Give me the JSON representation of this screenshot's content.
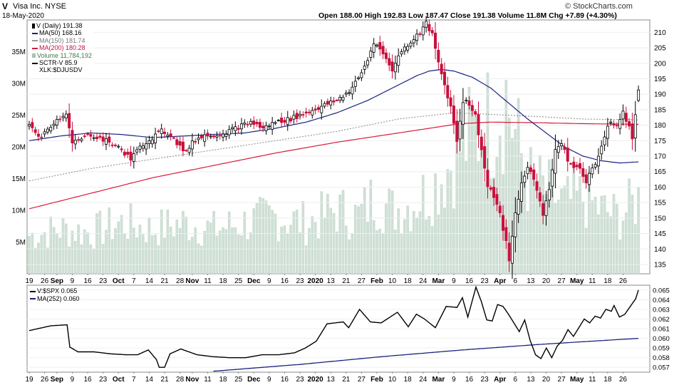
{
  "header": {
    "symbol": "V",
    "name": "Visa Inc. NYSE",
    "date": "18-May-2020",
    "brand": "© StockCharts.com",
    "ohlc": "Open 188.00  High 192.83  Low 187.47  Close 191.38  Volume 11.8M  Chg +7.89 (+4.30%)"
  },
  "legend": {
    "price": "V (Daily) 191.38",
    "ma50": "MA(50) 168.16",
    "ma150": "MA(150) 181.74",
    "ma200": "MA(200) 180.28",
    "volume": "Volume 11,784,192",
    "sctr": "SCTR-V 85.9",
    "xlk": "XLK:$DJUSDV"
  },
  "legend2": {
    "ratio": "V:$SPX 0.065",
    "ma": "MA(252) 0.060"
  },
  "colors": {
    "up": "#000000",
    "down": "#c8103c",
    "ma50": "#1a237e",
    "ma150": "#888888",
    "ma200": "#d81b3c",
    "volume": "#cfe0d6"
  },
  "chart_data": [
    {
      "type": "candlestick",
      "title": "V (Daily)",
      "price_axis": {
        "ylim": [
          132,
          214
        ],
        "ticks": [
          135,
          140,
          145,
          150,
          155,
          160,
          165,
          170,
          175,
          180,
          185,
          190,
          195,
          200,
          205,
          210
        ]
      },
      "volume_axis": {
        "ylim": [
          0,
          40000000
        ],
        "ticks": [
          "5M",
          "10M",
          "15M",
          "20M",
          "25M",
          "30M",
          "35M"
        ]
      },
      "x_tick_labels": [
        "19",
        "26",
        "Sep",
        "9",
        "16",
        "23",
        "Oct",
        "7",
        "14",
        "21",
        "28",
        "Nov",
        "11",
        "18",
        "25",
        "Dec",
        "9",
        "16",
        "23",
        "2020",
        "13",
        "21",
        "27",
        "Feb",
        "10",
        "18",
        "24",
        "Mar",
        "9",
        "16",
        "23",
        "Apr",
        "6",
        "13",
        "20",
        "27",
        "May",
        "11",
        "18",
        "26"
      ],
      "x_tick_bold": [
        "Sep",
        "Oct",
        "Nov",
        "Dec",
        "2020",
        "Feb",
        "Mar",
        "Apr",
        "May"
      ],
      "x_tick_day": [
        0,
        5,
        9,
        14,
        19,
        24,
        29,
        34,
        39,
        44,
        49,
        53,
        58,
        63,
        68,
        73,
        78,
        83,
        88,
        93,
        98,
        103,
        108,
        113,
        118,
        123,
        128,
        133,
        138,
        143,
        148,
        153,
        158,
        163,
        168,
        173,
        178,
        183,
        188,
        193
      ],
      "close_anchors": [
        [
          0,
          179.5
        ],
        [
          4,
          176
        ],
        [
          8,
          181
        ],
        [
          12,
          184
        ],
        [
          14,
          174
        ],
        [
          20,
          177
        ],
        [
          27,
          174
        ],
        [
          30,
          172
        ],
        [
          33,
          169
        ],
        [
          37,
          174
        ],
        [
          40,
          176
        ],
        [
          43,
          178
        ],
        [
          46,
          177
        ],
        [
          49,
          173
        ],
        [
          51,
          171
        ],
        [
          53,
          175
        ],
        [
          58,
          177
        ],
        [
          62,
          177
        ],
        [
          67,
          179
        ],
        [
          72,
          181
        ],
        [
          76,
          179
        ],
        [
          80,
          181
        ],
        [
          85,
          182
        ],
        [
          90,
          184
        ],
        [
          95,
          186
        ],
        [
          100,
          188
        ],
        [
          104,
          191
        ],
        [
          107,
          195
        ],
        [
          110,
          201
        ],
        [
          112,
          207
        ],
        [
          115,
          203
        ],
        [
          118,
          198
        ],
        [
          121,
          204
        ],
        [
          124,
          207
        ],
        [
          127,
          210
        ],
        [
          129,
          213
        ],
        [
          131,
          209
        ],
        [
          133,
          200
        ],
        [
          135,
          193
        ],
        [
          137,
          186
        ],
        [
          139,
          175
        ],
        [
          141,
          188
        ],
        [
          143,
          187
        ],
        [
          145,
          183
        ],
        [
          147,
          172
        ],
        [
          149,
          160
        ],
        [
          151,
          157
        ],
        [
          153,
          151
        ],
        [
          155,
          142
        ],
        [
          156,
          136
        ],
        [
          157,
          144
        ],
        [
          158,
          152
        ],
        [
          160,
          161
        ],
        [
          162,
          167
        ],
        [
          164,
          162
        ],
        [
          166,
          156
        ],
        [
          167,
          151
        ],
        [
          169,
          160
        ],
        [
          171,
          172
        ],
        [
          173,
          174
        ],
        [
          175,
          169
        ],
        [
          177,
          166
        ],
        [
          179,
          166
        ],
        [
          181,
          162
        ],
        [
          183,
          166
        ],
        [
          185,
          170
        ],
        [
          187,
          177
        ],
        [
          189,
          181
        ],
        [
          191,
          180
        ],
        [
          193,
          184
        ],
        [
          195,
          180
        ],
        [
          196,
          176
        ],
        [
          197,
          184
        ],
        [
          198,
          191.38
        ]
      ],
      "ma50_anchors": [
        [
          0,
          175
        ],
        [
          10,
          176.5
        ],
        [
          20,
          177.5
        ],
        [
          30,
          177
        ],
        [
          40,
          176
        ],
        [
          50,
          176.5
        ],
        [
          60,
          177
        ],
        [
          70,
          177.5
        ],
        [
          80,
          179
        ],
        [
          90,
          181
        ],
        [
          100,
          184
        ],
        [
          110,
          188
        ],
        [
          120,
          193
        ],
        [
          126,
          196
        ],
        [
          130,
          197.5
        ],
        [
          134,
          198
        ],
        [
          138,
          197.5
        ],
        [
          144,
          195.5
        ],
        [
          150,
          192
        ],
        [
          156,
          187
        ],
        [
          162,
          182
        ],
        [
          168,
          177.5
        ],
        [
          174,
          173
        ],
        [
          180,
          170
        ],
        [
          186,
          168.5
        ],
        [
          192,
          167.8
        ],
        [
          198,
          168.16
        ]
      ],
      "ma150_anchors": [
        [
          0,
          162
        ],
        [
          20,
          166
        ],
        [
          40,
          169
        ],
        [
          60,
          172
        ],
        [
          80,
          175
        ],
        [
          100,
          178
        ],
        [
          120,
          182
        ],
        [
          138,
          184
        ],
        [
          150,
          183.5
        ],
        [
          165,
          182.8
        ],
        [
          180,
          182
        ],
        [
          198,
          181.74
        ]
      ],
      "ma200_anchors": [
        [
          0,
          153
        ],
        [
          20,
          158
        ],
        [
          40,
          163
        ],
        [
          60,
          167
        ],
        [
          80,
          171
        ],
        [
          100,
          174.5
        ],
        [
          120,
          177.5
        ],
        [
          140,
          180.5
        ],
        [
          150,
          181
        ],
        [
          165,
          180.8
        ],
        [
          180,
          180.5
        ],
        [
          198,
          180.28
        ]
      ],
      "volume_anchors": [
        [
          0,
          6
        ],
        [
          10,
          7
        ],
        [
          20,
          6.5
        ],
        [
          30,
          8
        ],
        [
          40,
          7
        ],
        [
          50,
          8
        ],
        [
          60,
          7
        ],
        [
          70,
          8
        ],
        [
          80,
          9
        ],
        [
          90,
          8
        ],
        [
          100,
          10
        ],
        [
          107,
          9
        ],
        [
          112,
          12
        ],
        [
          118,
          10
        ],
        [
          124,
          11
        ],
        [
          130,
          13
        ],
        [
          135,
          16
        ],
        [
          140,
          20
        ],
        [
          145,
          22
        ],
        [
          150,
          24
        ],
        [
          155,
          28
        ],
        [
          158,
          22
        ],
        [
          162,
          15
        ],
        [
          168,
          13
        ],
        [
          174,
          11
        ],
        [
          180,
          12
        ],
        [
          186,
          10
        ],
        [
          192,
          9
        ],
        [
          198,
          11.8
        ]
      ]
    },
    {
      "type": "line",
      "title": "V:$SPX",
      "ylim": [
        0.0565,
        0.0655
      ],
      "y_ticks": [
        0.057,
        0.058,
        0.059,
        0.06,
        0.061,
        0.062,
        0.063,
        0.064,
        0.065
      ],
      "ratio_anchors": [
        [
          0,
          0.0608
        ],
        [
          8,
          0.0613
        ],
        [
          14,
          0.0614
        ],
        [
          15,
          0.0591
        ],
        [
          18,
          0.0586
        ],
        [
          24,
          0.0586
        ],
        [
          30,
          0.0584
        ],
        [
          36,
          0.0583
        ],
        [
          40,
          0.0583
        ],
        [
          44,
          0.0588
        ],
        [
          47,
          0.0578
        ],
        [
          48,
          0.057
        ],
        [
          50,
          0.057
        ],
        [
          52,
          0.0584
        ],
        [
          56,
          0.0589
        ],
        [
          62,
          0.0583
        ],
        [
          68,
          0.0581
        ],
        [
          74,
          0.058
        ],
        [
          80,
          0.058
        ],
        [
          86,
          0.0583
        ],
        [
          92,
          0.0583
        ],
        [
          98,
          0.0585
        ],
        [
          102,
          0.059
        ],
        [
          106,
          0.0597
        ],
        [
          110,
          0.0615
        ],
        [
          116,
          0.0617
        ],
        [
          118,
          0.0611
        ],
        [
          122,
          0.063
        ],
        [
          126,
          0.0617
        ],
        [
          130,
          0.0616
        ],
        [
          136,
          0.0627
        ],
        [
          140,
          0.0612
        ],
        [
          143,
          0.0625
        ],
        [
          146,
          0.062
        ],
        [
          150,
          0.0611
        ],
        [
          154,
          0.0633
        ],
        [
          158,
          0.0632
        ],
        [
          160,
          0.0642
        ],
        [
          162,
          0.0622
        ],
        [
          165,
          0.0653
        ],
        [
          167,
          0.0638
        ],
        [
          169,
          0.0619
        ],
        [
          171,
          0.0618
        ],
        [
          173,
          0.0635
        ],
        [
          175,
          0.0633
        ],
        [
          177,
          0.0625
        ],
        [
          179,
          0.0616
        ],
        [
          181,
          0.0607
        ],
        [
          183,
          0.0619
        ],
        [
          185,
          0.0598
        ],
        [
          187,
          0.0583
        ],
        [
          189,
          0.0579
        ],
        [
          191,
          0.059
        ],
        [
          193,
          0.058
        ],
        [
          195,
          0.0592
        ],
        [
          197,
          0.0598
        ],
        [
          199,
          0.0609
        ],
        [
          201,
          0.0602
        ],
        [
          203,
          0.0611
        ],
        [
          205,
          0.062
        ],
        [
          207,
          0.0616
        ],
        [
          209,
          0.0623
        ],
        [
          211,
          0.0621
        ],
        [
          213,
          0.063
        ],
        [
          215,
          0.0628
        ],
        [
          216,
          0.0634
        ],
        [
          218,
          0.0622
        ],
        [
          220,
          0.0625
        ],
        [
          222,
          0.0633
        ],
        [
          224,
          0.0641
        ],
        [
          225,
          0.065
        ]
      ],
      "ma_anchors": [
        [
          68,
          0.0566
        ],
        [
          100,
          0.0573
        ],
        [
          130,
          0.0581
        ],
        [
          160,
          0.0588
        ],
        [
          190,
          0.0594
        ],
        [
          225,
          0.06
        ]
      ]
    }
  ]
}
